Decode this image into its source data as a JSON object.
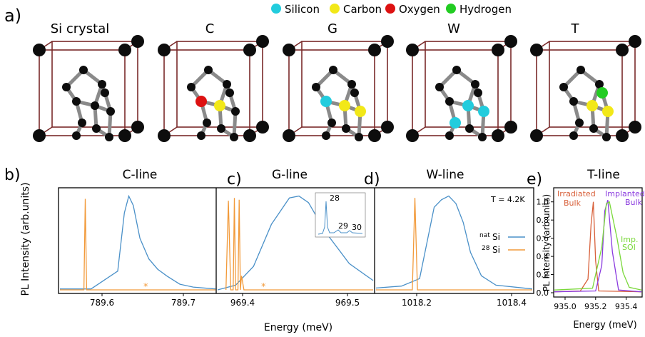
{
  "panel_labels": {
    "a": "a)",
    "b": "b)",
    "c": "c)",
    "d": "d)",
    "e": "e)"
  },
  "legend_atoms": [
    {
      "label": "Silicon",
      "color": "#22ccdd"
    },
    {
      "label": "Carbon",
      "color": "#f2e818"
    },
    {
      "label": "Oxygen",
      "color": "#dd1111"
    },
    {
      "label": "Hydrogen",
      "color": "#22cc22"
    }
  ],
  "crystal_titles": [
    "Si crystal",
    "C",
    "G",
    "W",
    "T"
  ],
  "colors": {
    "frame": "#7a2a2a",
    "si_atom": "#0d0d0d",
    "bond": "#8a8a8a",
    "natSi": "#4a90c8",
    "si28": "#f29a3a",
    "irradiated": "#d8603a",
    "implanted": "#8a3adf",
    "imp_soi": "#7ad83a"
  },
  "chart_data": [
    {
      "type": "line",
      "title": "C-line",
      "xticks": [
        "789.6",
        "789.7"
      ],
      "xlim": [
        789.43,
        789.78
      ],
      "series": [
        {
          "name": "natSi",
          "x": [
            789.43,
            789.5,
            789.56,
            789.575,
            789.585,
            789.595,
            789.61,
            789.63,
            789.65,
            789.67,
            789.69,
            789.7,
            789.73,
            789.78
          ],
          "y": [
            0.01,
            0.01,
            0.2,
            0.82,
            1.0,
            0.9,
            0.55,
            0.33,
            0.22,
            0.15,
            0.09,
            0.06,
            0.03,
            0.01
          ]
        },
        {
          "name": "28Si",
          "x": [
            789.43,
            789.484,
            789.487,
            789.49,
            789.66,
            789.78
          ],
          "y": [
            0.0,
            0.0,
            0.97,
            0.0,
            0.0,
            0.0
          ]
        }
      ],
      "annotations": [
        "*"
      ]
    },
    {
      "type": "line",
      "title": "G-line",
      "xticks": [
        "969.4",
        "969.5"
      ],
      "xlim": [
        969.39,
        969.52
      ],
      "series": [
        {
          "name": "natSi",
          "x": [
            969.39,
            969.405,
            969.42,
            969.435,
            969.45,
            969.458,
            969.466,
            969.48,
            969.5,
            969.52
          ],
          "y": [
            0.0,
            0.05,
            0.25,
            0.7,
            0.98,
            1.0,
            0.93,
            0.62,
            0.28,
            0.1
          ]
        },
        {
          "name": "28Si",
          "x": [
            969.397,
            969.399,
            969.401,
            969.403,
            969.404,
            969.405,
            969.407,
            969.408,
            969.409,
            969.41,
            969.412,
            969.52
          ],
          "y": [
            0.0,
            0.95,
            0.0,
            0.0,
            0.98,
            0.0,
            0.0,
            0.96,
            0.0,
            0.15,
            0.0,
            0.0
          ]
        }
      ],
      "inset": {
        "labels": [
          "28",
          "29",
          "30"
        ]
      },
      "annotations": [
        "*"
      ]
    },
    {
      "type": "line",
      "title": "W-line",
      "xticks": [
        "1018.2",
        "1018.4"
      ],
      "xlim": [
        1018.05,
        1018.48
      ],
      "annotation": "T = 4.2K",
      "series": [
        {
          "name": "natSi",
          "x": [
            1018.05,
            1018.12,
            1018.17,
            1018.19,
            1018.21,
            1018.23,
            1018.25,
            1018.27,
            1018.29,
            1018.31,
            1018.34,
            1018.38,
            1018.48
          ],
          "y": [
            0.02,
            0.04,
            0.12,
            0.5,
            0.88,
            0.96,
            1.0,
            0.92,
            0.72,
            0.4,
            0.15,
            0.05,
            0.01
          ]
        },
        {
          "name": "28Si",
          "x": [
            1018.05,
            1018.15,
            1018.157,
            1018.164,
            1018.48
          ],
          "y": [
            0.0,
            0.0,
            0.98,
            0.0,
            0.0
          ]
        }
      ],
      "legend": [
        "natSi",
        "28Si"
      ]
    },
    {
      "type": "line",
      "title": "T-line",
      "xlabel": "Energy (meV)",
      "ylabel": "PL Intensity (arb.units)",
      "xticks": [
        "935.0",
        "935.2",
        "935.4"
      ],
      "yticks": [
        "0.0",
        "0.2",
        "0.4",
        "0.6",
        "0.8",
        "1.0"
      ],
      "xlim": [
        934.93,
        935.5
      ],
      "ylim": [
        0,
        1.1
      ],
      "series": [
        {
          "name": "Irradiated Bulk",
          "x": [
            934.93,
            935.1,
            935.15,
            935.17,
            935.185,
            935.2,
            935.22,
            935.5
          ],
          "y": [
            0.01,
            0.02,
            0.15,
            0.75,
            1.0,
            0.35,
            0.02,
            0.01
          ]
        },
        {
          "name": "Implanted Bulk",
          "x": [
            934.93,
            935.2,
            935.24,
            935.26,
            935.28,
            935.31,
            935.35,
            935.5
          ],
          "y": [
            0.01,
            0.02,
            0.3,
            0.9,
            1.02,
            0.45,
            0.03,
            0.01
          ]
        },
        {
          "name": "Imp. SOI",
          "x": [
            934.93,
            935.18,
            935.24,
            935.27,
            935.29,
            935.34,
            935.38,
            935.42,
            935.5
          ],
          "y": [
            0.03,
            0.05,
            0.5,
            0.98,
            1.0,
            0.6,
            0.22,
            0.06,
            0.03
          ]
        }
      ]
    }
  ],
  "shared_axes": {
    "xlabel": "Energy (meV)",
    "ylabel": "PL Intensity (arb.units)"
  },
  "inset_labels": {
    "i28": "28",
    "i29": "29",
    "i30": "30"
  },
  "legend_d": {
    "nat": "Si",
    "nat_sup": "nat",
    "s28": "Si",
    "s28_sup": "28"
  },
  "legend_e": {
    "irr1": "Irradiated",
    "irr2": "Bulk",
    "imp1": "Implanted",
    "imp2": "Bulk",
    "soi1": "Imp.",
    "soi2": "SOI"
  }
}
